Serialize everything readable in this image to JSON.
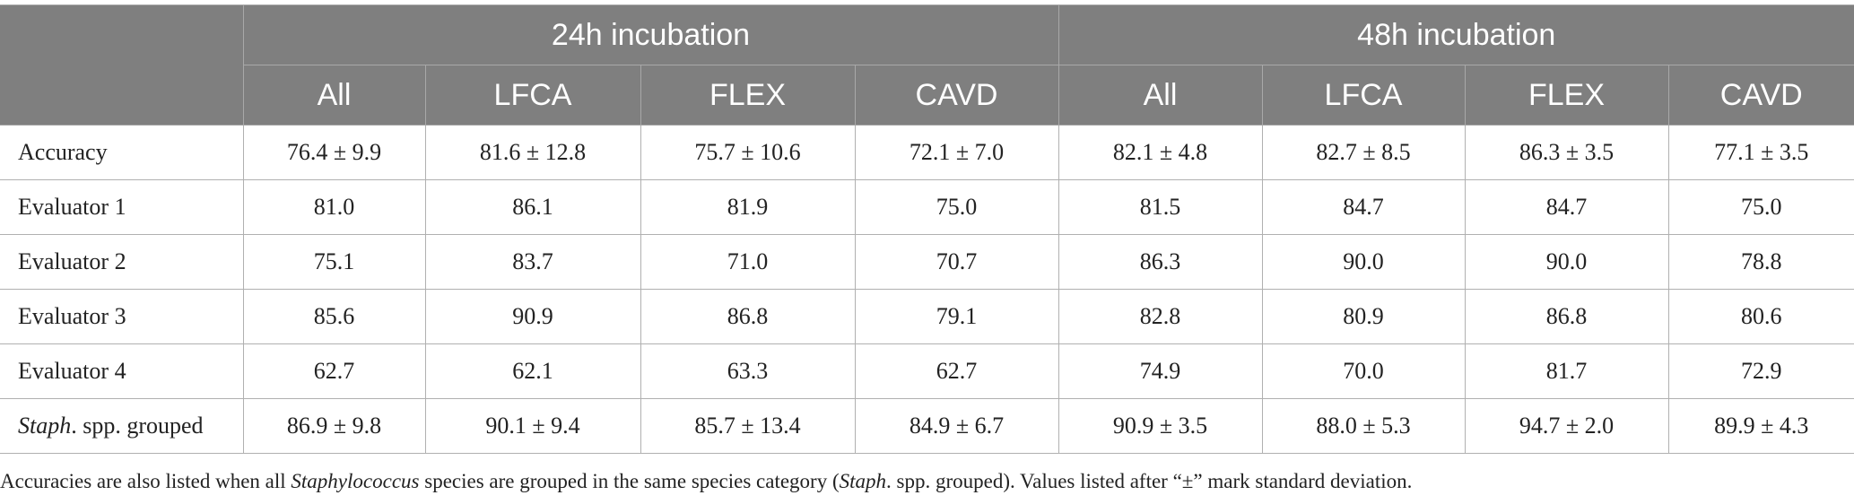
{
  "table": {
    "group_headers": [
      "24h incubation",
      "48h incubation"
    ],
    "sub_headers": [
      "All",
      "LFCA",
      "FLEX",
      "CAVD",
      "All",
      "LFCA",
      "FLEX",
      "CAVD"
    ],
    "rows": [
      {
        "label": "Accuracy",
        "values": [
          "76.4 ± 9.9",
          "81.6 ± 12.8",
          "75.7 ± 10.6",
          "72.1 ± 7.0",
          "82.1 ± 4.8",
          "82.7 ± 8.5",
          "86.3 ± 3.5",
          "77.1 ± 3.5"
        ]
      },
      {
        "label": "Evaluator 1",
        "values": [
          "81.0",
          "86.1",
          "81.9",
          "75.0",
          "81.5",
          "84.7",
          "84.7",
          "75.0"
        ]
      },
      {
        "label": "Evaluator 2",
        "values": [
          "75.1",
          "83.7",
          "71.0",
          "70.7",
          "86.3",
          "90.0",
          "90.0",
          "78.8"
        ]
      },
      {
        "label": "Evaluator 3",
        "values": [
          "85.6",
          "90.9",
          "86.8",
          "79.1",
          "82.8",
          "80.9",
          "86.8",
          "80.6"
        ]
      },
      {
        "label": "Evaluator 4",
        "values": [
          "62.7",
          "62.1",
          "63.3",
          "62.7",
          "74.9",
          "70.0",
          "81.7",
          "72.9"
        ]
      },
      {
        "label_italic": "Staph",
        "label_rest": ". spp. grouped",
        "values": [
          "86.9 ± 9.8",
          "90.1 ± 9.4",
          "85.7 ± 13.4",
          "84.9 ± 6.7",
          "90.9 ± 3.5",
          "88.0 ± 5.3",
          "94.7 ± 2.0",
          "89.9 ± 4.3"
        ]
      }
    ]
  },
  "footnote": {
    "part1": "Accuracies are also listed when all ",
    "italic1": "Staphylococcus",
    "part2": " species are grouped in the same species category (",
    "italic2": "Staph",
    "part3": ". spp. grouped). Values listed after “±” mark standard deviation."
  }
}
